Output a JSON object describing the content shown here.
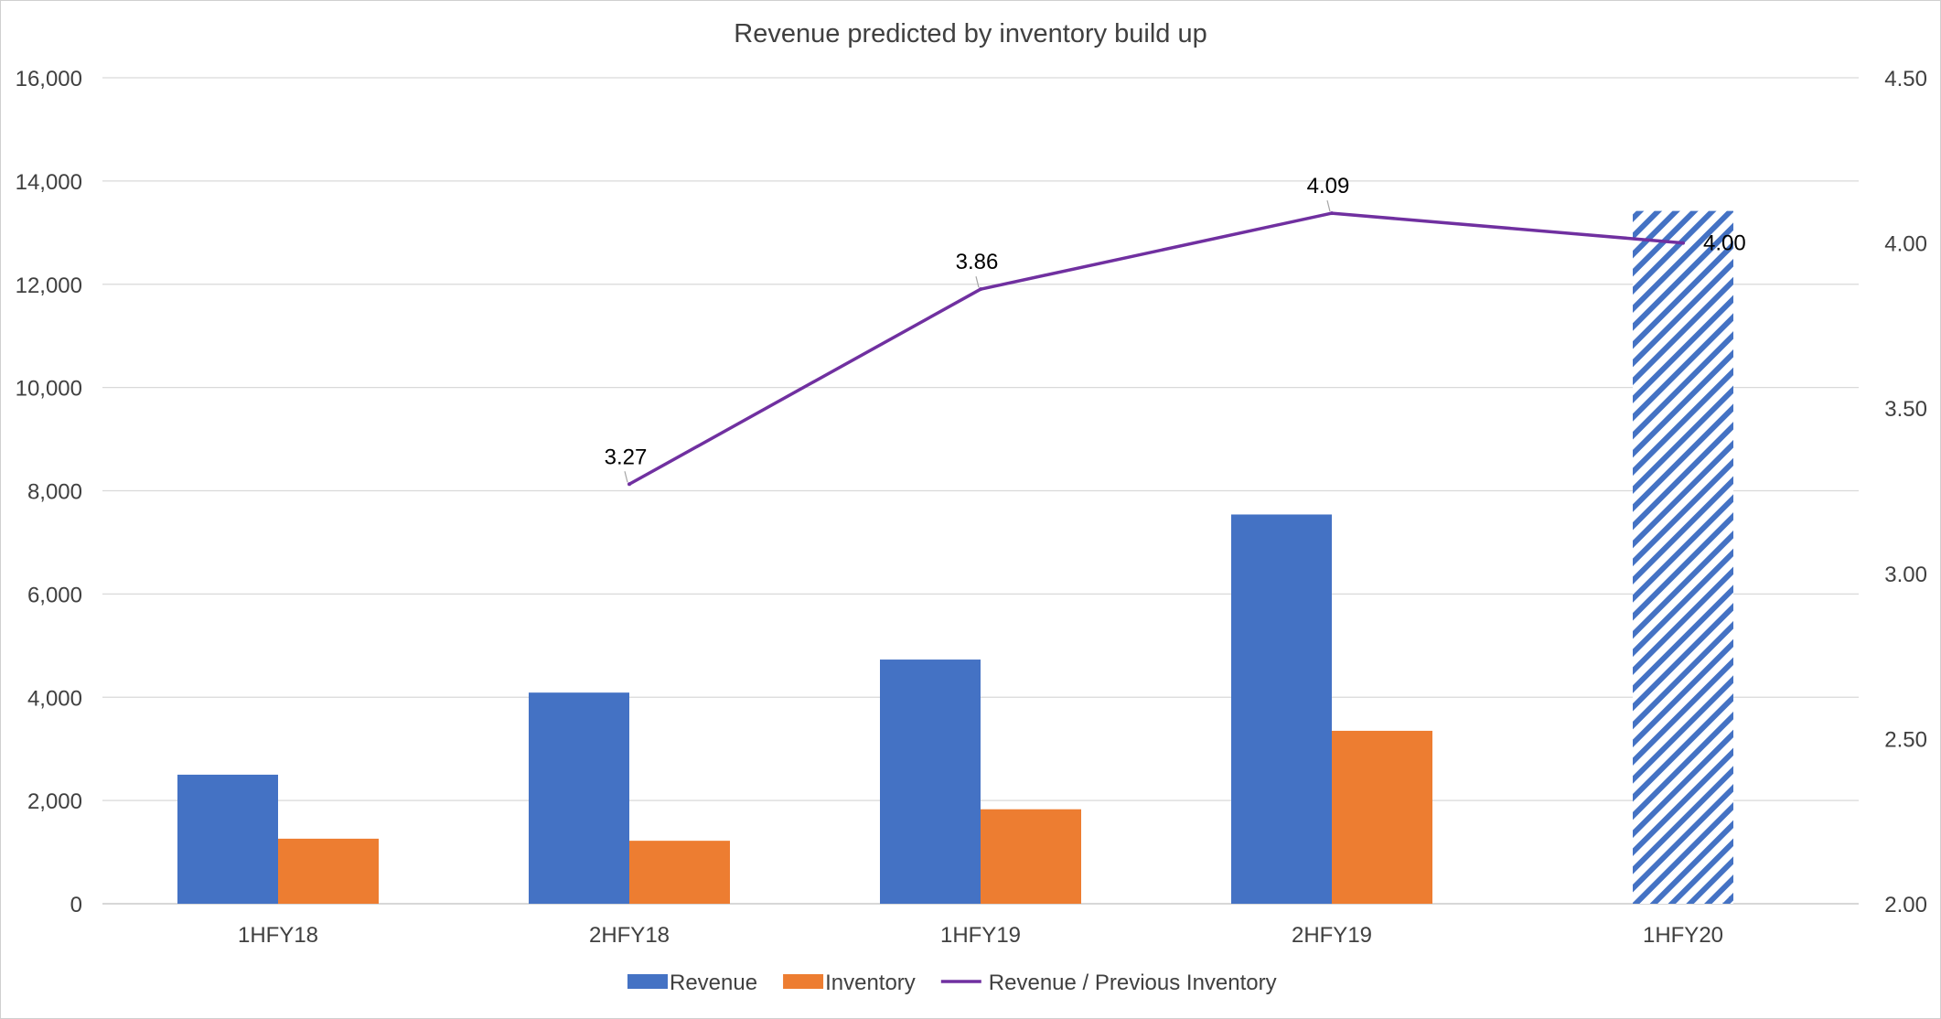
{
  "chart_data": {
    "type": "bar",
    "title": "Revenue predicted by inventory build up",
    "categories": [
      "1HFY18",
      "2HFY18",
      "1HFY19",
      "2HFY19",
      "1HFY20"
    ],
    "y_left": {
      "range": [
        0,
        16000
      ],
      "ticks": [
        "0",
        "2,000",
        "4,000",
        "6,000",
        "8,000",
        "10,000",
        "12,000",
        "14,000",
        "16,000"
      ]
    },
    "y_right": {
      "range": [
        2.0,
        4.5
      ],
      "ticks": [
        "2.00",
        "2.50",
        "3.00",
        "3.50",
        "4.00",
        "4.50"
      ]
    },
    "grid": true,
    "legend_position": "bottom",
    "series": [
      {
        "name": "Revenue",
        "type": "bar",
        "axis": "left",
        "color": "#4472C4",
        "values": [
          2500,
          4090,
          4730,
          7540,
          13420
        ],
        "projected": [
          false,
          false,
          false,
          false,
          true
        ]
      },
      {
        "name": "Inventory",
        "type": "bar",
        "axis": "left",
        "color": "#ED7D31",
        "values": [
          1260,
          1220,
          1830,
          3350,
          null
        ]
      },
      {
        "name": "Revenue / Previous Inventory",
        "type": "line",
        "axis": "right",
        "color": "#7030A0",
        "values": [
          null,
          3.27,
          3.86,
          4.09,
          4.0
        ],
        "labels": [
          "",
          "3.27",
          "3.86",
          "4.09",
          "4.00"
        ]
      }
    ]
  }
}
